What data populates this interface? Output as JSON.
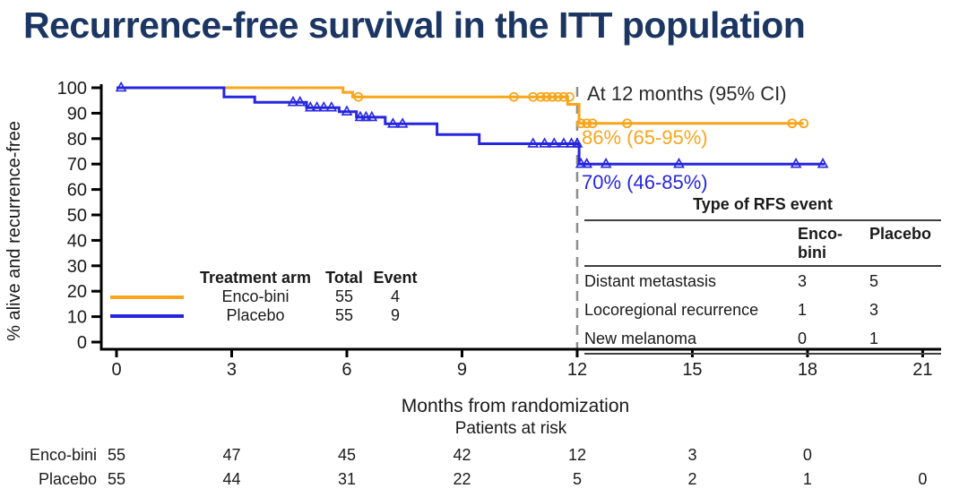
{
  "title": "Recurrence-free survival in the ITT population",
  "colors": {
    "encobini": "#F9A51B",
    "placebo": "#2626E0",
    "title": "#1B3663",
    "annotation_heading": "#2B2B2B",
    "reference_line": "#8C8C8C",
    "axis": "#000000"
  },
  "chart_data": {
    "type": "line",
    "subtype": "kaplan_meier_step",
    "title": "",
    "xlabel": "Months from randomization",
    "ylabel": "% alive and recurrence-free",
    "xlim": [
      0,
      21
    ],
    "ylim": [
      0,
      100
    ],
    "xticks": [
      0,
      3,
      6,
      9,
      12,
      15,
      18,
      21
    ],
    "yticks": [
      0,
      10,
      20,
      30,
      40,
      50,
      60,
      70,
      80,
      90,
      100
    ],
    "grid": false,
    "reference_line_x": 12,
    "series": [
      {
        "name": "Enco-bini",
        "color": "#F9A51B",
        "marker": "circle",
        "total": 55,
        "events": 4,
        "estimate_at_12_months": "86% (65-95%)",
        "steps": [
          [
            0,
            100
          ],
          [
            5.9,
            100
          ],
          [
            5.9,
            98.2
          ],
          [
            6.15,
            98.2
          ],
          [
            6.15,
            96.4
          ],
          [
            11.75,
            96.4
          ],
          [
            11.75,
            93.5
          ],
          [
            12.05,
            93.5
          ],
          [
            12.05,
            86
          ],
          [
            17.9,
            86
          ]
        ],
        "censors": [
          [
            6.3,
            96.4
          ],
          [
            10.35,
            96.4
          ],
          [
            10.85,
            96.4
          ],
          [
            11.05,
            96.4
          ],
          [
            11.2,
            96.4
          ],
          [
            11.35,
            96.4
          ],
          [
            11.5,
            96.4
          ],
          [
            11.65,
            96.4
          ],
          [
            11.8,
            96.4
          ],
          [
            12.1,
            86
          ],
          [
            12.25,
            86
          ],
          [
            12.4,
            86
          ],
          [
            13.3,
            86
          ],
          [
            17.6,
            86
          ],
          [
            17.9,
            86
          ]
        ]
      },
      {
        "name": "Placebo",
        "color": "#2626E0",
        "marker": "triangle",
        "total": 55,
        "events": 9,
        "estimate_at_12_months": "70% (46-85%)",
        "steps": [
          [
            0,
            100
          ],
          [
            2.8,
            100
          ],
          [
            2.8,
            96.4
          ],
          [
            3.6,
            96.4
          ],
          [
            3.6,
            94.3
          ],
          [
            4.95,
            94.3
          ],
          [
            4.95,
            92.2
          ],
          [
            5.8,
            92.2
          ],
          [
            5.8,
            90.6
          ],
          [
            6.25,
            90.6
          ],
          [
            6.25,
            88.4
          ],
          [
            7.0,
            88.4
          ],
          [
            7.0,
            85.8
          ],
          [
            8.35,
            85.8
          ],
          [
            8.35,
            81.6
          ],
          [
            9.45,
            81.6
          ],
          [
            9.45,
            78
          ],
          [
            12.05,
            78
          ],
          [
            12.05,
            70
          ],
          [
            18.45,
            70
          ]
        ],
        "censors": [
          [
            0.12,
            100
          ],
          [
            4.6,
            94.3
          ],
          [
            4.78,
            94.3
          ],
          [
            5.05,
            92.2
          ],
          [
            5.22,
            92.2
          ],
          [
            5.4,
            92.2
          ],
          [
            5.6,
            92.2
          ],
          [
            6.0,
            90.6
          ],
          [
            6.35,
            88.4
          ],
          [
            6.5,
            88.4
          ],
          [
            6.65,
            88.4
          ],
          [
            7.2,
            85.8
          ],
          [
            7.45,
            85.8
          ],
          [
            10.85,
            78
          ],
          [
            11.15,
            78
          ],
          [
            11.4,
            78
          ],
          [
            11.65,
            78
          ],
          [
            11.85,
            78
          ],
          [
            12.0,
            78
          ],
          [
            12.1,
            70
          ],
          [
            12.25,
            70
          ],
          [
            12.75,
            70
          ],
          [
            14.65,
            70
          ],
          [
            17.7,
            70
          ],
          [
            18.4,
            70
          ]
        ]
      }
    ]
  },
  "annotation": {
    "heading": "At 12 months (95% CI)",
    "encobini_value": "86% (65-95%)",
    "placebo_value": "70% (46-85%)"
  },
  "legend": {
    "headers": {
      "arm": "Treatment arm",
      "total": "Total",
      "event": "Event"
    },
    "rows": [
      {
        "arm": "Enco-bini",
        "total": "55",
        "event": "4"
      },
      {
        "arm": "Placebo",
        "total": "55",
        "event": "9"
      }
    ]
  },
  "rfs_table": {
    "title": "Type of RFS event",
    "columns": [
      "Enco-bini",
      "Placebo"
    ],
    "rows": [
      {
        "label": "Distant metastasis",
        "encobini": "3",
        "placebo": "5"
      },
      {
        "label": "Locoregional recurrence",
        "encobini": "1",
        "placebo": "3"
      },
      {
        "label": "New melanoma",
        "encobini": "0",
        "placebo": "1"
      }
    ]
  },
  "risk_table": {
    "caption": "Patients at risk",
    "rows": [
      {
        "label": "Enco-bini",
        "values": [
          "55",
          "47",
          "45",
          "42",
          "12",
          "3",
          "0",
          ""
        ]
      },
      {
        "label": "Placebo",
        "values": [
          "55",
          "44",
          "31",
          "22",
          "5",
          "2",
          "1",
          "0"
        ]
      }
    ]
  }
}
